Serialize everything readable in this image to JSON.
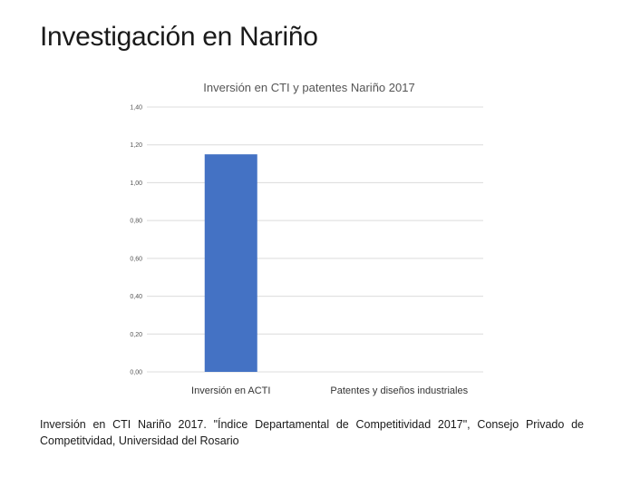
{
  "slide": {
    "title": "Investigación en Nariño",
    "caption": "Inversión en CTI Nariño 2017. \"Índice Departamental de Competitividad 2017\", Consejo Privado de Competitvidad, Universidad del Rosario"
  },
  "chart_data": {
    "type": "bar",
    "title": "Inversión en CTI y patentes Nariño 2017",
    "categories": [
      "Inversión en ACTI",
      "Patentes y diseños industriales"
    ],
    "values": [
      1.15,
      0.0
    ],
    "ylim": [
      0,
      1.4
    ],
    "yticks": [
      "0,00",
      "0,20",
      "0,40",
      "0,60",
      "0,80",
      "1,00",
      "1,20",
      "1,40"
    ],
    "xlabel": "",
    "ylabel": "",
    "grid": true,
    "legend": "none",
    "bar_color": "#4472c4"
  }
}
